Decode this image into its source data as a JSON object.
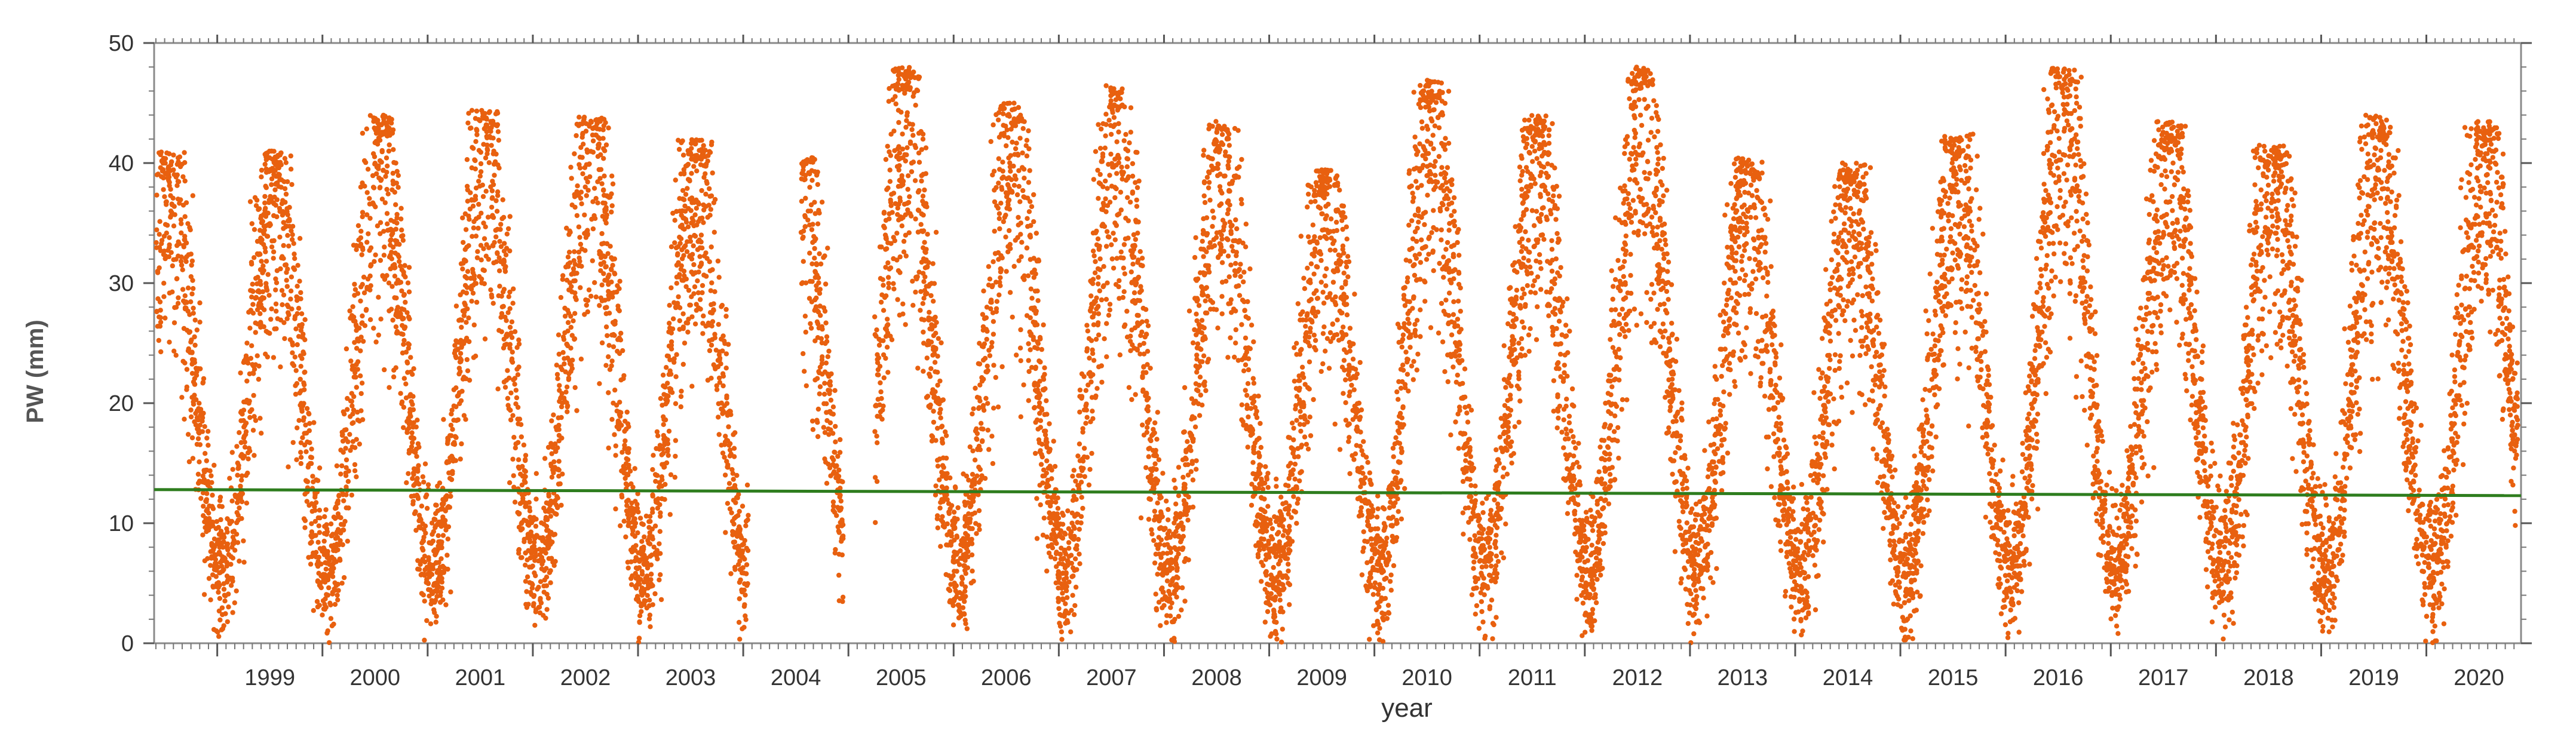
{
  "chart_data": {
    "type": "scatter",
    "xlabel": "year",
    "ylabel": "PW (mm)",
    "ylim": [
      0,
      50
    ],
    "y_ticks": [
      0,
      10,
      20,
      30,
      40,
      50
    ],
    "x_range": [
      1998.4,
      2020.9
    ],
    "year_labels": [
      "1999",
      "2000",
      "2001",
      "2002",
      "2003",
      "2004",
      "2005",
      "2006",
      "2007",
      "2008",
      "2009",
      "2010",
      "2011",
      "2012",
      "2013",
      "2014",
      "2015",
      "2016",
      "2017",
      "2018",
      "2019",
      "2020"
    ],
    "grid": false,
    "series": [
      {
        "marker": "dot",
        "color": "#E8600F",
        "seasonal_peaks": [
          {
            "year": 1999,
            "peak": 41
          },
          {
            "year": 2000,
            "peak": 44
          },
          {
            "year": 2001,
            "peak": 44.5
          },
          {
            "year": 2002,
            "peak": 44
          },
          {
            "year": 2003,
            "peak": 42
          },
          {
            "year": 2004,
            "peak": 40.5
          },
          {
            "year": 2005,
            "peak": 48
          },
          {
            "year": 2006,
            "peak": 45
          },
          {
            "year": 2007,
            "peak": 46.5
          },
          {
            "year": 2008,
            "peak": 43.5
          },
          {
            "year": 2009,
            "peak": 39.5
          },
          {
            "year": 2010,
            "peak": 47
          },
          {
            "year": 2011,
            "peak": 44
          },
          {
            "year": 2012,
            "peak": 48
          },
          {
            "year": 2013,
            "peak": 40.5
          },
          {
            "year": 2014,
            "peak": 40
          },
          {
            "year": 2015,
            "peak": 42.5
          },
          {
            "year": 2016,
            "peak": 48
          },
          {
            "year": 2017,
            "peak": 43.5
          },
          {
            "year": 2018,
            "peak": 41.5
          },
          {
            "year": 2019,
            "peak": 44
          },
          {
            "year": 2020,
            "peak": 43.5
          }
        ],
        "baseline_min": 0,
        "typical_winter": 5
      },
      {
        "type": "line",
        "color": "#2E7D1E",
        "x": [
          1998.4,
          2020.9
        ],
        "y": [
          12.8,
          12.3
        ]
      }
    ]
  }
}
